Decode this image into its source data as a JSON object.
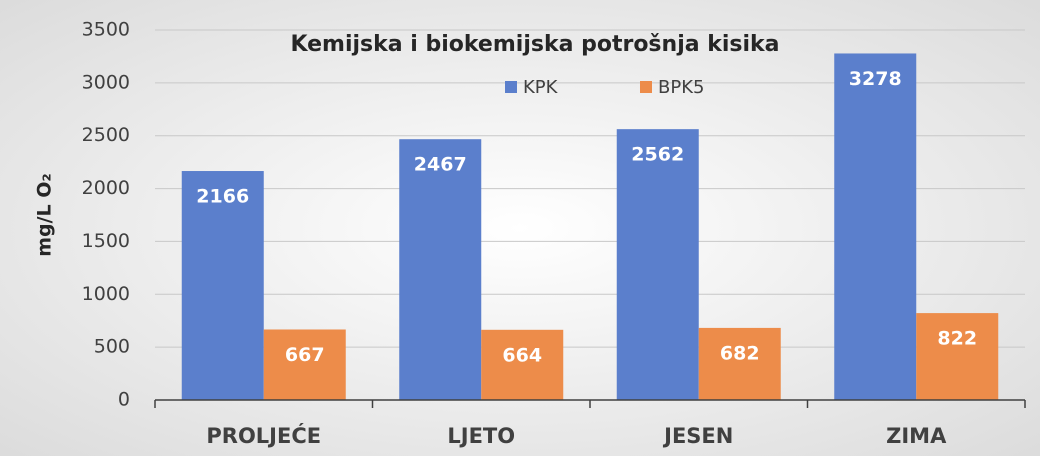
{
  "chart_data": {
    "type": "bar",
    "title": "Kemijska i biokemijska potrošnja kisika",
    "y_label": "mg/L O₂",
    "categories": [
      "PROLJEĆE",
      "LJETO",
      "JESEN",
      "ZIMA"
    ],
    "series": [
      {
        "name": "KPK",
        "color": "#5b7fcc",
        "values": [
          2166,
          2467,
          2562,
          3278
        ]
      },
      {
        "name": "BPK5",
        "color": "#ed8c4a",
        "values": [
          667,
          664,
          682,
          822
        ]
      }
    ],
    "ylim": [
      0,
      3500
    ],
    "yticks": [
      0,
      500,
      1000,
      1500,
      2000,
      2500,
      3000,
      3500
    ],
    "grid": true
  }
}
